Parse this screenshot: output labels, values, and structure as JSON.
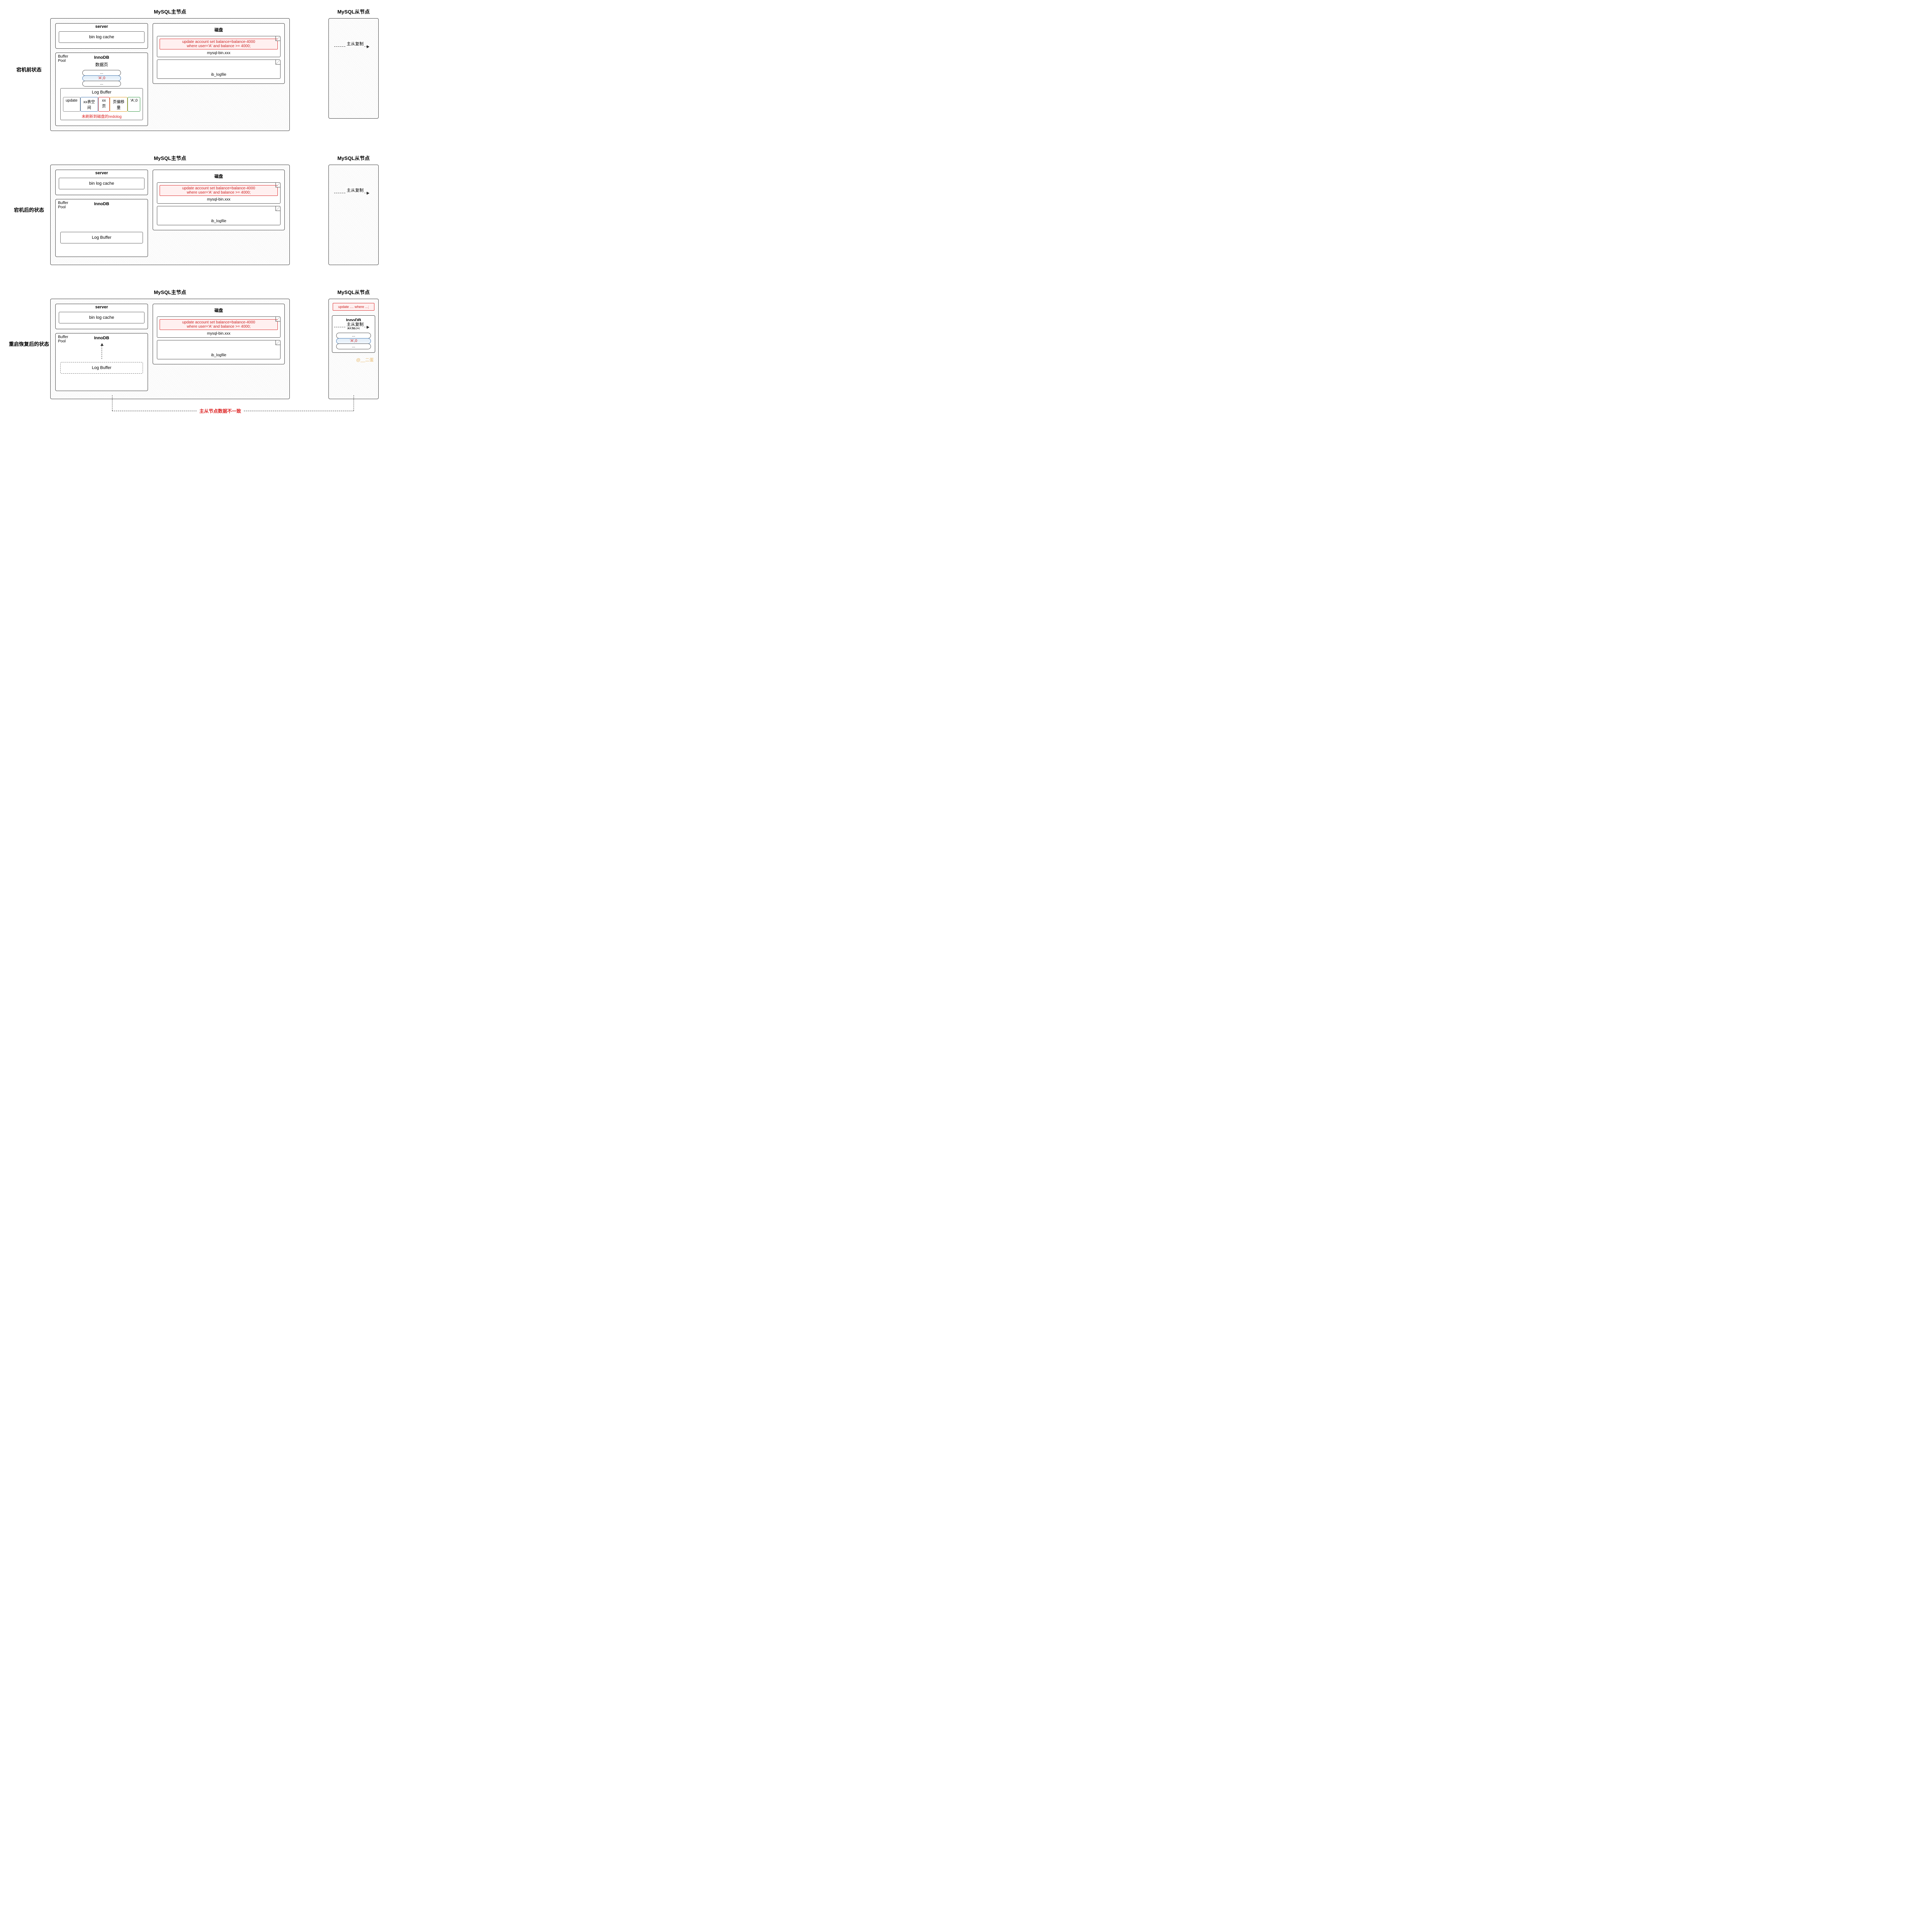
{
  "labels": {
    "stage1": "宕机前状态",
    "stage2": "宕机后的状态",
    "stage3": "重启恢复后的状态",
    "master": "MySQL主节点",
    "slave": "MySQL从节点",
    "server": "server",
    "binlogcache": "bin log cache",
    "innodb": "InnoDB",
    "bufferpool": "Buffer\nPool",
    "datapage": "数据页",
    "logbuffer": "Log Buffer",
    "disk": "磁盘",
    "binfile": "mysql-bin.xxx",
    "iblog": "ib_logfile",
    "replication": "主从复制",
    "redolog_note": "未刷新到磁盘的redolog",
    "inconsistent": "主从节点数据不一致",
    "watermark": "@__二蛋"
  },
  "sql": {
    "line1": "update account set balance=balance-4000",
    "line2": "where user='A' and balance >= 4000;",
    "short": "update .... where ...;"
  },
  "page_rows": {
    "top": "...",
    "mid": "'A',0",
    "bot": "..."
  },
  "logcells": [
    {
      "text": "update",
      "color": "#888888"
    },
    {
      "text": "xx表空间",
      "color": "#4a7db5"
    },
    {
      "text": "xx页",
      "color": "#d33333"
    },
    {
      "text": "页偏移量",
      "color": "#e0a030"
    },
    {
      "text": "'A',0",
      "color": "#3a9a4a"
    }
  ],
  "colors": {
    "border": "#444444",
    "red": "#d22222",
    "highlight_bg": "#e0ecf7",
    "sql_border": "#d33333",
    "sql_bg": "#fff0f0"
  }
}
